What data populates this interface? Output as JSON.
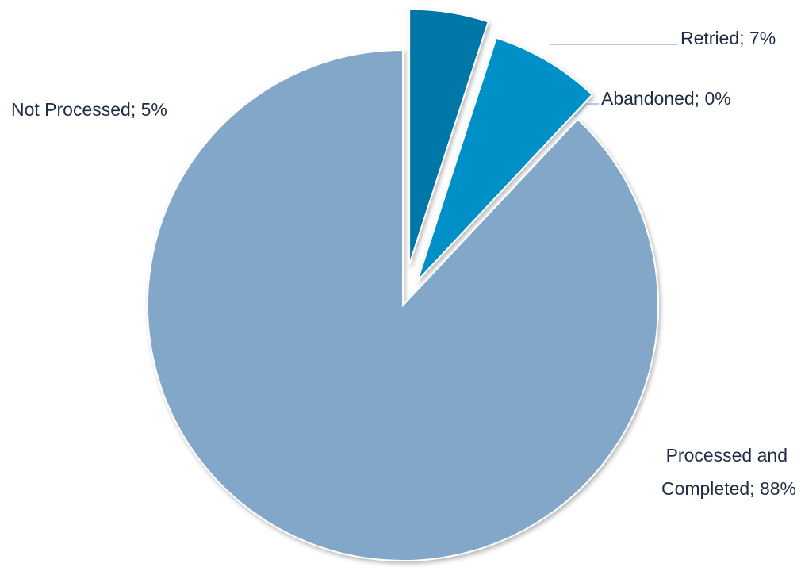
{
  "chart_data": {
    "type": "pie",
    "title": "",
    "slices": [
      {
        "category": "Not Processed",
        "value": 5,
        "label": "Not Processed; 5%",
        "color": "#0077a6"
      },
      {
        "category": "Retried",
        "value": 7,
        "label": "Retried; 7%",
        "color": "#0090c8"
      },
      {
        "category": "Abandoned",
        "value": 0,
        "label": "Abandoned; 0%",
        "color": "#4aa8d8"
      },
      {
        "category": "Processed and Completed",
        "value": 88,
        "label_lines": [
          "Processed and",
          "Completed; 88%"
        ],
        "color": "#82a7c8"
      }
    ],
    "start_angle_deg": 0,
    "direction": "clockwise",
    "exploded": [
      "Not Processed",
      "Retried",
      "Abandoned"
    ],
    "legend": "none"
  }
}
